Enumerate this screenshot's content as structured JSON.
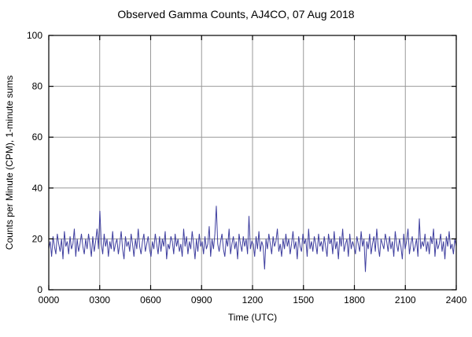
{
  "title": "Observed Gamma Counts, AJ4CO, 07 Aug 2018",
  "chart_data": {
    "type": "line",
    "title": "Observed Gamma Counts, AJ4CO, 07 Aug 2018",
    "xlabel": "Time (UTC)",
    "ylabel": "Counts per Minute (CPM), 1-minute sums",
    "xlim_minutes": [
      0,
      1440
    ],
    "ylim": [
      0,
      100
    ],
    "x_tick_labels": [
      "0000",
      "0300",
      "0600",
      "0900",
      "1200",
      "1500",
      "1800",
      "2100",
      "2400"
    ],
    "x_tick_minutes": [
      0,
      180,
      360,
      540,
      720,
      900,
      1080,
      1260,
      1440
    ],
    "y_ticks": [
      0,
      20,
      40,
      60,
      80,
      100
    ],
    "grid": true,
    "legend": "none",
    "line_color": "#3f3f9f",
    "grid_color": "#999999",
    "axis_color": "#000000",
    "sample_interval_minutes": 5,
    "series": [
      {
        "name": "gamma_counts_cpm",
        "values": [
          16,
          19,
          13,
          21,
          17,
          14,
          22,
          18,
          15,
          20,
          12,
          23,
          17,
          19,
          14,
          21,
          16,
          18,
          24,
          13,
          20,
          15,
          18,
          22,
          17,
          14,
          20,
          16,
          22,
          18,
          13,
          21,
          15,
          19,
          24,
          16,
          31,
          18,
          14,
          22,
          17,
          20,
          13,
          19,
          16,
          23,
          15,
          18,
          20,
          14,
          18,
          23,
          16,
          12,
          21,
          17,
          19,
          15,
          22,
          18,
          13,
          20,
          16,
          24,
          17,
          14,
          19,
          22,
          15,
          18,
          21,
          16,
          13,
          19,
          16,
          22,
          18,
          14,
          21,
          15,
          20,
          17,
          23,
          12,
          18,
          16,
          21,
          19,
          14,
          22,
          17,
          20,
          15,
          18,
          13,
          24,
          17,
          21,
          14,
          19,
          16,
          23,
          18,
          12,
          20,
          15,
          22,
          17,
          19,
          14,
          21,
          16,
          18,
          25,
          13,
          20,
          16,
          22,
          33,
          18,
          15,
          19,
          22,
          16,
          13,
          20,
          17,
          24,
          14,
          18,
          21,
          16,
          19,
          12,
          22,
          18,
          15,
          21,
          17,
          20,
          14,
          29,
          16,
          19,
          18,
          13,
          21,
          16,
          23,
          15,
          19,
          17,
          8,
          20,
          16,
          22,
          18,
          14,
          21,
          17,
          19,
          24,
          15,
          18,
          13,
          20,
          16,
          22,
          17,
          20,
          14,
          18,
          23,
          16,
          19,
          12,
          21,
          17,
          15,
          22,
          18,
          20,
          13,
          24,
          16,
          19,
          15,
          21,
          18,
          14,
          22,
          17,
          19,
          15,
          21,
          17,
          13,
          22,
          18,
          20,
          14,
          23,
          16,
          19,
          12,
          21,
          17,
          24,
          15,
          18,
          20,
          13,
          22,
          16,
          19,
          17,
          14,
          21,
          18,
          15,
          23,
          17,
          20,
          7,
          19,
          16,
          22,
          14,
          18,
          21,
          15,
          24,
          17,
          13,
          20,
          18,
          16,
          22,
          19,
          15,
          21,
          16,
          19,
          13,
          23,
          18,
          15,
          20,
          17,
          12,
          22,
          16,
          19,
          24,
          14,
          18,
          21,
          15,
          17,
          20,
          13,
          28,
          16,
          19,
          17,
          22,
          15,
          19,
          14,
          21,
          18,
          24,
          13,
          20,
          16,
          18,
          22,
          15,
          19,
          12,
          21,
          17,
          23,
          16,
          18,
          14,
          20,
          17
        ]
      }
    ]
  }
}
